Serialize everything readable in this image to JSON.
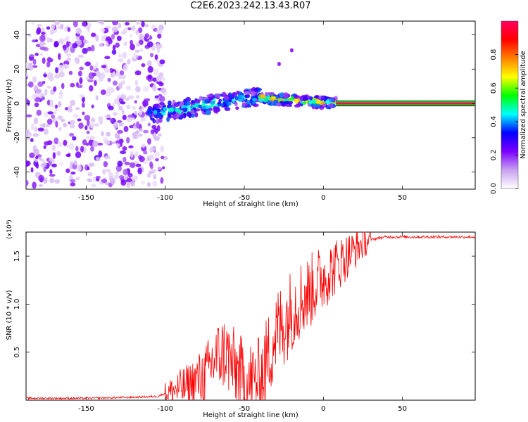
{
  "title": "C2E6.2023.242.13.43.R07",
  "chart_data": [
    {
      "type": "heatmap",
      "title": "C2E6.2023.242.13.43.R07",
      "xlabel": "Height of straight line (km)",
      "ylabel": "Frequency (Hz)",
      "xlim": [
        -188,
        96
      ],
      "ylim": [
        -50,
        48
      ],
      "x_ticks": [
        -150,
        -100,
        -50,
        0,
        50
      ],
      "x_tick_labels": [
        "-150",
        "-100",
        "-50",
        "0",
        "50"
      ],
      "y_ticks": [
        -40,
        -20,
        0,
        20,
        40
      ],
      "y_tick_labels": [
        "-40",
        "-20",
        "0",
        "20",
        "40"
      ],
      "colorbar": {
        "label": "Normalized spectral amplitude",
        "range": [
          0,
          1
        ],
        "ticks": [
          0.0,
          0.2,
          0.4,
          0.6,
          0.8
        ],
        "tick_labels": [
          "0.0",
          "0.2",
          "0.4",
          "0.6",
          "0.8"
        ],
        "colors": [
          "#ffffff",
          "#c8a0f0",
          "#7b00ff",
          "#0000ff",
          "#00ffff",
          "#00ff00",
          "#ffff00",
          "#ff8000",
          "#ff0000",
          "#ff0060"
        ]
      },
      "regions": [
        {
          "name": "noise",
          "x_range": [
            -188,
            -100
          ],
          "freq_range": [
            -48,
            48
          ],
          "amplitude": 0.1
        },
        {
          "name": "onset",
          "x_range": [
            -110,
            -40
          ],
          "freq_center_start": -6,
          "freq_center_end": 4,
          "amplitude": 0.35
        },
        {
          "name": "transition",
          "x_range": [
            -40,
            8
          ],
          "freq_center_start": 3,
          "freq_center_end": 0,
          "amplitude": 0.55
        },
        {
          "name": "steady-line",
          "x_range": [
            8,
            96
          ],
          "freq_center": 0,
          "amplitude": 1.0
        }
      ],
      "spurious_points": [
        [
          -20,
          31
        ],
        [
          -28,
          23
        ]
      ]
    },
    {
      "type": "line",
      "title": "",
      "xlabel": "Height of straight line (km)",
      "ylabel": "SNR (10 * v/v)",
      "y_multiplier": "(x10⁴)",
      "xlim": [
        -188,
        96
      ],
      "ylim": [
        0,
        1.75
      ],
      "x_ticks": [
        -150,
        -100,
        -50,
        0,
        50
      ],
      "x_tick_labels": [
        "-150",
        "-100",
        "-50",
        "0",
        "50"
      ],
      "y_ticks": [
        0.5,
        1.0,
        1.5
      ],
      "y_tick_labels": [
        "0.5",
        "1.0",
        "1.5"
      ],
      "color": "#ff0000",
      "series": [
        {
          "name": "SNR",
          "x": [
            -188,
            -150,
            -120,
            -105,
            -95,
            -85,
            -75,
            -68,
            -62,
            -55,
            -50,
            -45,
            -40,
            -35,
            -30,
            -25,
            -20,
            -15,
            -10,
            -5,
            0,
            5,
            10,
            15,
            20,
            25,
            30,
            35,
            40,
            50,
            60,
            70,
            80,
            96
          ],
          "y": [
            0.02,
            0.02,
            0.03,
            0.04,
            0.1,
            0.15,
            0.25,
            0.45,
            0.5,
            0.3,
            0.2,
            0.18,
            0.2,
            0.45,
            0.7,
            0.8,
            0.95,
            1.05,
            1.1,
            1.2,
            1.28,
            1.35,
            1.43,
            1.5,
            1.57,
            1.63,
            1.67,
            1.69,
            1.7,
            1.7,
            1.7,
            1.7,
            1.7,
            1.7
          ]
        }
      ]
    }
  ]
}
